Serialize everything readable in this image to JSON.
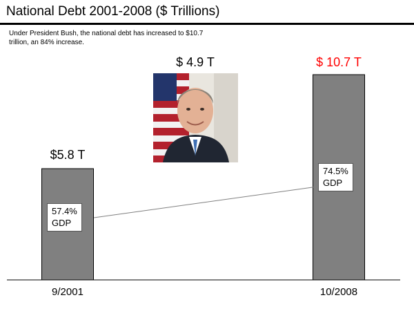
{
  "chart_data": {
    "type": "bar",
    "title": "National Debt 2001-2008 ($ Trillions)",
    "subtitle": "Under President Bush, the national debt has increased to $10.7 trillion, an 84% increase.",
    "categories": [
      "9/2001",
      "10/2008"
    ],
    "values": [
      5.8,
      10.7
    ],
    "value_labels": [
      "$5.8 T",
      "$ 10.7 T"
    ],
    "gdp_labels": [
      [
        "57.4%",
        "GDP"
      ],
      [
        "74.5%",
        "GDP"
      ]
    ],
    "gdp_values": [
      57.4,
      74.5
    ],
    "increase_label": "$ 4.9 T",
    "ylim": [
      0,
      10.7
    ],
    "grid": false,
    "colors": {
      "bar": "#808080",
      "bar_border": "#000000",
      "highlight": "#ff0000",
      "connector": "#7f7f7f"
    }
  },
  "image": {
    "name": "president-portrait",
    "description_icon": "portrait-photo-icon"
  }
}
